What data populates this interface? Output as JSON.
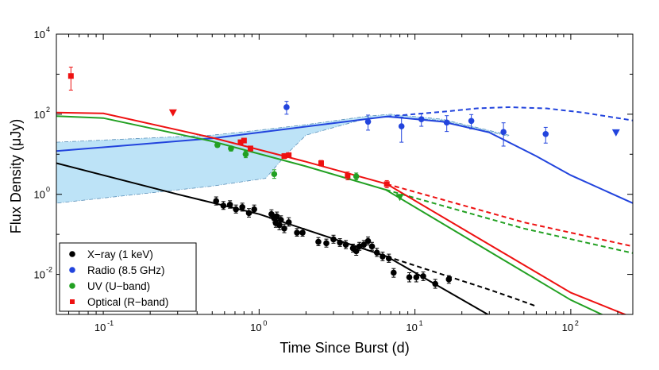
{
  "chart_data": {
    "type": "scatter",
    "xlabel": "Time Since Burst (d)",
    "ylabel": "Flux Density (μJy)",
    "xscale": "log",
    "yscale": "log",
    "xlim": [
      0.05,
      250
    ],
    "ylim": [
      0.001,
      10000
    ],
    "x_ticks": [
      {
        "value": 0.1,
        "base": "10",
        "exp": "-1"
      },
      {
        "value": 1,
        "base": "10",
        "exp": "0"
      },
      {
        "value": 10,
        "base": "10",
        "exp": "1"
      },
      {
        "value": 100,
        "base": "10",
        "exp": "2"
      }
    ],
    "y_ticks": [
      {
        "value": 0.01,
        "base": "10",
        "exp": "-2"
      },
      {
        "value": 1,
        "base": "10",
        "exp": "0"
      },
      {
        "value": 100,
        "base": "10",
        "exp": "2"
      },
      {
        "value": 10000,
        "base": "10",
        "exp": "4"
      }
    ],
    "legend": {
      "placement": "bottom-left",
      "entries": [
        {
          "label": "X−ray (1 keV)",
          "color": "#000000",
          "marker": "circle"
        },
        {
          "label": "Radio (8.5 GHz)",
          "color": "#2244dd",
          "marker": "circle"
        },
        {
          "label": "UV (U−band)",
          "color": "#22a022",
          "marker": "circle"
        },
        {
          "label": "Optical (R−band)",
          "color": "#ee1111",
          "marker": "square"
        }
      ]
    },
    "band": {
      "color": "#bde3f7",
      "edge_color": "#5a8fb8",
      "upper": [
        [
          0.05,
          20
        ],
        [
          0.5,
          30
        ],
        [
          1,
          40
        ],
        [
          2,
          55
        ],
        [
          5,
          90
        ],
        [
          7,
          100
        ],
        [
          15,
          75
        ],
        [
          40,
          30
        ]
      ],
      "lower": [
        [
          40,
          28
        ],
        [
          15,
          70
        ],
        [
          7,
          85
        ],
        [
          5,
          80
        ],
        [
          2,
          30
        ],
        [
          1.5,
          10
        ],
        [
          1.1,
          2.5
        ],
        [
          0.5,
          1.6
        ],
        [
          0.05,
          0.6
        ]
      ]
    },
    "series": [
      {
        "name": "X-ray (1 keV)",
        "color": "#000000",
        "marker": "circle",
        "points": [
          {
            "x": 0.53,
            "y": 0.68,
            "err": [
              0.14,
              0.18
            ]
          },
          {
            "x": 0.59,
            "y": 0.52,
            "err": [
              0.1,
              0.14
            ]
          },
          {
            "x": 0.65,
            "y": 0.55,
            "err": [
              0.1,
              0.14
            ]
          },
          {
            "x": 0.71,
            "y": 0.42,
            "err": [
              0.08,
              0.12
            ]
          },
          {
            "x": 0.78,
            "y": 0.48,
            "err": [
              0.1,
              0.12
            ]
          },
          {
            "x": 0.86,
            "y": 0.34,
            "err": [
              0.07,
              0.1
            ]
          },
          {
            "x": 0.93,
            "y": 0.42,
            "err": [
              0.08,
              0.12
            ]
          },
          {
            "x": 1.2,
            "y": 0.32,
            "err": [
              0.07,
              0.09
            ]
          },
          {
            "x": 1.25,
            "y": 0.25,
            "err": [
              0.05,
              0.07
            ]
          },
          {
            "x": 1.28,
            "y": 0.19,
            "err": [
              0.04,
              0.06
            ]
          },
          {
            "x": 1.3,
            "y": 0.28,
            "err": [
              0.06,
              0.08
            ]
          },
          {
            "x": 1.35,
            "y": 0.17,
            "err": [
              0.04,
              0.05
            ]
          },
          {
            "x": 1.38,
            "y": 0.23,
            "err": [
              0.05,
              0.06
            ]
          },
          {
            "x": 1.45,
            "y": 0.14,
            "err": [
              0.03,
              0.04
            ]
          },
          {
            "x": 1.55,
            "y": 0.2,
            "err": [
              0.04,
              0.06
            ]
          },
          {
            "x": 1.75,
            "y": 0.11,
            "err": [
              0.02,
              0.03
            ]
          },
          {
            "x": 1.9,
            "y": 0.11,
            "err": [
              0.02,
              0.03
            ]
          },
          {
            "x": 2.4,
            "y": 0.065,
            "err": [
              0.013,
              0.018
            ]
          },
          {
            "x": 2.7,
            "y": 0.06,
            "err": [
              0.012,
              0.016
            ]
          },
          {
            "x": 3.0,
            "y": 0.075,
            "err": [
              0.015,
              0.02
            ]
          },
          {
            "x": 3.3,
            "y": 0.062,
            "err": [
              0.012,
              0.016
            ]
          },
          {
            "x": 3.6,
            "y": 0.055,
            "err": [
              0.011,
              0.015
            ]
          },
          {
            "x": 4.0,
            "y": 0.045,
            "err": [
              0.009,
              0.012
            ]
          },
          {
            "x": 4.2,
            "y": 0.038,
            "err": [
              0.008,
              0.01
            ]
          },
          {
            "x": 4.4,
            "y": 0.05,
            "err": [
              0.01,
              0.013
            ]
          },
          {
            "x": 4.7,
            "y": 0.055,
            "err": [
              0.011,
              0.015
            ]
          },
          {
            "x": 5.0,
            "y": 0.068,
            "err": [
              0.014,
              0.018
            ]
          },
          {
            "x": 5.3,
            "y": 0.05,
            "err": [
              0.01,
              0.013
            ]
          },
          {
            "x": 5.7,
            "y": 0.035,
            "err": [
              0.007,
              0.01
            ]
          },
          {
            "x": 6.2,
            "y": 0.028,
            "err": [
              0.006,
              0.008
            ]
          },
          {
            "x": 6.8,
            "y": 0.025,
            "err": [
              0.005,
              0.007
            ]
          },
          {
            "x": 7.3,
            "y": 0.011,
            "err": [
              0.0025,
              0.003
            ]
          },
          {
            "x": 9.2,
            "y": 0.0085,
            "err": [
              0.002,
              0.0025
            ]
          },
          {
            "x": 10.2,
            "y": 0.0085,
            "err": [
              0.002,
              0.0025
            ]
          },
          {
            "x": 11.3,
            "y": 0.009,
            "err": [
              0.002,
              0.0025
            ]
          },
          {
            "x": 13.5,
            "y": 0.0058,
            "err": [
              0.0013,
              0.0017
            ]
          },
          {
            "x": 16.5,
            "y": 0.0075,
            "err": [
              0.0015,
              0.0018
            ]
          }
        ]
      },
      {
        "name": "Radio (8.5 GHz)",
        "color": "#2244dd",
        "marker": "circle",
        "points": [
          {
            "x": 1.5,
            "y": 150,
            "err": [
              50,
              60
            ]
          },
          {
            "x": 5.0,
            "y": 65,
            "err": [
              25,
              30
            ]
          },
          {
            "x": 8.2,
            "y": 50,
            "err": [
              30,
              35
            ]
          },
          {
            "x": 11.0,
            "y": 75,
            "err": [
              25,
              30
            ]
          },
          {
            "x": 16.0,
            "y": 62,
            "err": [
              25,
              30
            ]
          },
          {
            "x": 23.0,
            "y": 68,
            "err": [
              25,
              30
            ]
          },
          {
            "x": 37.0,
            "y": 36,
            "err": [
              20,
              25
            ]
          },
          {
            "x": 69.0,
            "y": 32,
            "err": [
              13,
              15
            ]
          }
        ],
        "upper_limits": [
          {
            "x": 195.0,
            "y": 35
          }
        ]
      },
      {
        "name": "UV (U-band)",
        "color": "#22a022",
        "marker": "circle",
        "points": [
          {
            "x": 0.54,
            "y": 17,
            "err": [
              2,
              2
            ]
          },
          {
            "x": 0.66,
            "y": 14,
            "err": [
              2,
              2
            ]
          },
          {
            "x": 0.82,
            "y": 10,
            "err": [
              1.8,
              2
            ]
          },
          {
            "x": 1.25,
            "y": 3.2,
            "err": [
              0.7,
              0.9
            ]
          },
          {
            "x": 4.2,
            "y": 2.8,
            "err": [
              0.5,
              0.6
            ]
          }
        ],
        "upper_limits": [
          {
            "x": 8.0,
            "y": 0.85
          }
        ]
      },
      {
        "name": "Optical (R-band)",
        "color": "#ee1111",
        "marker": "square",
        "points": [
          {
            "x": 0.062,
            "y": 900,
            "err": [
              500,
              600
            ]
          },
          {
            "x": 0.76,
            "y": 20,
            "err": [
              2,
              2
            ]
          },
          {
            "x": 0.8,
            "y": 22,
            "err": [
              2,
              2
            ]
          },
          {
            "x": 0.88,
            "y": 14,
            "err": [
              2,
              2
            ]
          },
          {
            "x": 1.45,
            "y": 9,
            "err": [
              1.2,
              1.4
            ]
          },
          {
            "x": 1.55,
            "y": 9.5,
            "err": [
              1.2,
              1.4
            ]
          },
          {
            "x": 2.5,
            "y": 6,
            "err": [
              0.9,
              1
            ]
          },
          {
            "x": 3.7,
            "y": 2.9,
            "err": [
              0.6,
              0.7
            ]
          },
          {
            "x": 6.6,
            "y": 1.8,
            "err": [
              0.35,
              0.4
            ]
          }
        ],
        "upper_limits": [
          {
            "x": 0.28,
            "y": 110
          }
        ]
      }
    ],
    "models": [
      {
        "name": "X-ray model",
        "color": "#000000",
        "dash": false,
        "points": [
          [
            0.05,
            6
          ],
          [
            0.3,
            1.0
          ],
          [
            1,
            0.32
          ],
          [
            6.6,
            0.028
          ],
          [
            30,
            0.00095
          ]
        ]
      },
      {
        "name": "X-ray model extended",
        "color": "#000000",
        "dash": true,
        "points": [
          [
            6.6,
            0.028
          ],
          [
            30,
            0.00415
          ],
          [
            45,
            0.0024
          ],
          [
            60,
            0.0016
          ]
        ]
      },
      {
        "name": "Radio model",
        "color": "#2244dd",
        "dash": false,
        "points": [
          [
            0.05,
            12
          ],
          [
            0.5,
            25
          ],
          [
            6.6,
            88
          ],
          [
            15,
            65
          ],
          [
            30,
            35
          ],
          [
            60,
            9
          ],
          [
            100,
            3
          ],
          [
            250,
            0.6
          ]
        ]
      },
      {
        "name": "Radio model extended",
        "color": "#2244dd",
        "dash": true,
        "points": [
          [
            6.6,
            88
          ],
          [
            15,
            115
          ],
          [
            25,
            140
          ],
          [
            40,
            150
          ],
          [
            70,
            140
          ],
          [
            120,
            110
          ],
          [
            250,
            70
          ]
        ]
      },
      {
        "name": "UV model",
        "color": "#22a022",
        "dash": false,
        "points": [
          [
            0.05,
            90
          ],
          [
            0.1,
            80
          ],
          [
            0.5,
            21
          ],
          [
            2,
            5
          ],
          [
            6.5,
            1.3
          ],
          [
            100,
            0.0023
          ],
          [
            200,
            0.00065
          ]
        ]
      },
      {
        "name": "UV model extended",
        "color": "#22a022",
        "dash": true,
        "points": [
          [
            6.5,
            1.3
          ],
          [
            50,
            0.14
          ],
          [
            250,
            0.034
          ]
        ]
      },
      {
        "name": "Optical model",
        "color": "#ee1111",
        "dash": false,
        "points": [
          [
            0.05,
            110
          ],
          [
            0.1,
            105
          ],
          [
            0.5,
            26
          ],
          [
            2,
            6.5
          ],
          [
            6.6,
            1.8
          ],
          [
            100,
            0.0035
          ],
          [
            230,
            0.00095
          ]
        ]
      },
      {
        "name": "Optical model extended",
        "color": "#ee1111",
        "dash": true,
        "points": [
          [
            6.6,
            1.8
          ],
          [
            50,
            0.2
          ],
          [
            250,
            0.05
          ]
        ]
      }
    ]
  }
}
